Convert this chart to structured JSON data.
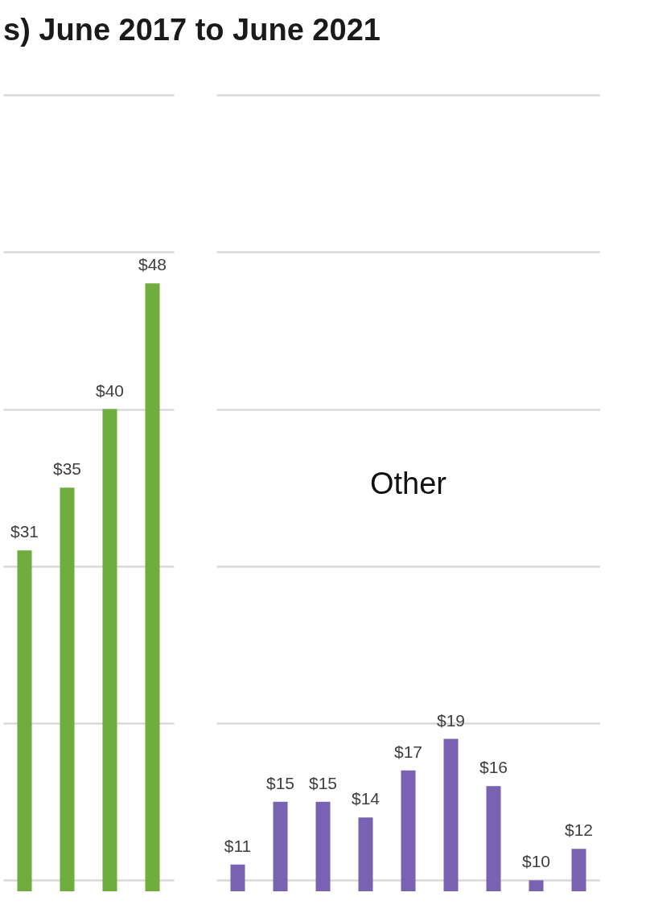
{
  "chart_data": [
    {
      "type": "bar",
      "title": "s) June 2017 to June 2021",
      "categories": [
        null,
        null,
        null,
        null
      ],
      "series": [
        {
          "color": "#6fad3f",
          "values": [
            31,
            35,
            40,
            48
          ],
          "value_labels": [
            "$31",
            "$35",
            "$40",
            "$48"
          ]
        }
      ],
      "ylim": [
        9.3,
        60
      ],
      "yticks": [
        {
          "value": 10,
          "label": null
        },
        {
          "value": 20,
          "label": null
        },
        {
          "value": 30,
          "label": null
        },
        {
          "value": 40,
          "label": null
        },
        {
          "value": 50,
          "label": null
        },
        {
          "value": 60,
          "label": null
        }
      ],
      "grid": "y",
      "tick_labels": false
    },
    {
      "type": "bar",
      "categories": [
        null,
        null,
        null,
        null,
        null,
        null,
        null,
        null,
        null
      ],
      "series": [
        {
          "color": "#7a62b3",
          "values": [
            11,
            15,
            15,
            14,
            17,
            19,
            16,
            10,
            12
          ],
          "value_labels": [
            "$11",
            "$15",
            "$15",
            "$14",
            "$17",
            "$19",
            "$16",
            "$10",
            "$12"
          ]
        }
      ],
      "annotations": [
        "Other"
      ],
      "ylim": [
        9.3,
        60
      ],
      "yticks": [
        {
          "value": 10,
          "label": null
        },
        {
          "value": 20,
          "label": null
        },
        {
          "value": 30,
          "label": null
        },
        {
          "value": 40,
          "label": null
        },
        {
          "value": 50,
          "label": null
        },
        {
          "value": 60,
          "label": null
        }
      ],
      "grid": "y",
      "tick_labels": false
    }
  ]
}
